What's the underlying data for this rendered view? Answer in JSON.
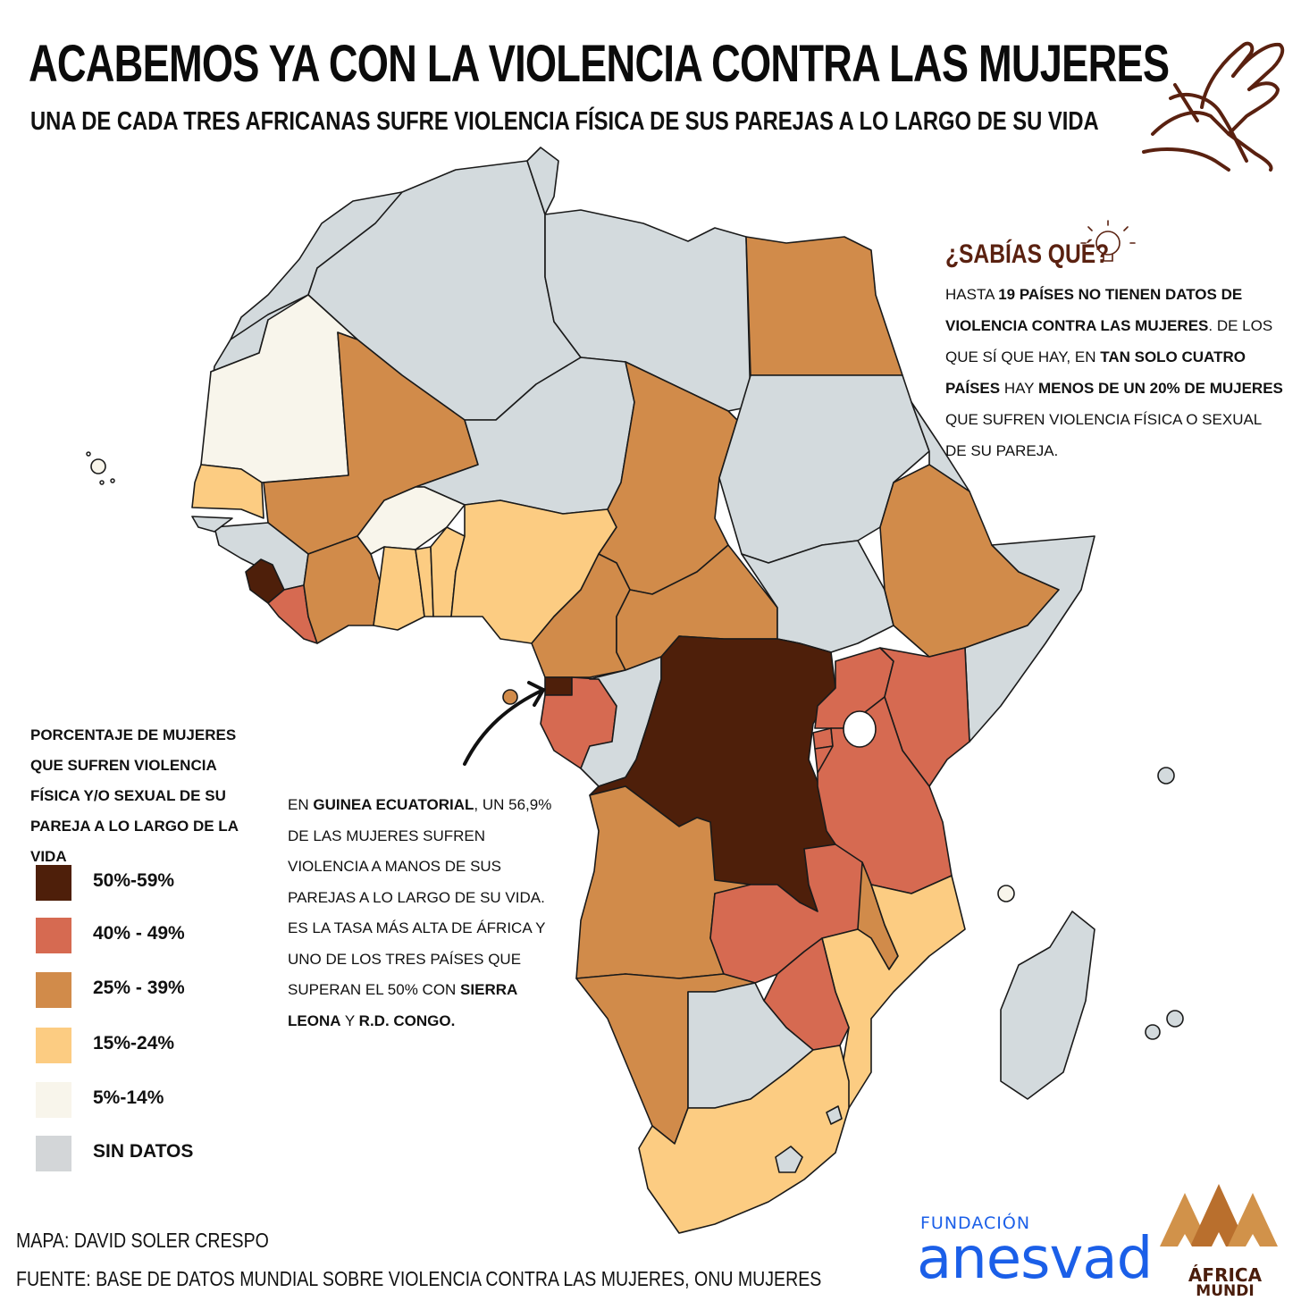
{
  "header": {
    "title": "ACABEMOS YA CON LA VIOLENCIA CONTRA LAS MUJERES",
    "subtitle": "UNA DE CADA TRES AFRICANAS SUFRE VIOLENCIA FÍSICA DE SUS PAREJAS A LO LARGO DE SU VIDA"
  },
  "fact_box": {
    "title": "¿SABÍAS QUÉ?",
    "segments": [
      {
        "text": "HASTA ",
        "bold": false
      },
      {
        "text": "19 PAÍSES NO TIENEN DATOS DE VIOLENCIA CONTRA LAS MUJERES",
        "bold": true
      },
      {
        "text": ".  DE LOS QUE SÍ QUE HAY, EN ",
        "bold": false
      },
      {
        "text": "TAN SOLO CUATRO PAÍSES",
        "bold": true
      },
      {
        "text": " HAY ",
        "bold": false
      },
      {
        "text": "MENOS DE UN 20% DE MUJERES",
        "bold": true
      },
      {
        "text": " QUE SUFREN VIOLENCIA FÍSICA O SEXUAL DE SU PAREJA.",
        "bold": false
      }
    ]
  },
  "note": {
    "segments": [
      {
        "text": "EN ",
        "bold": false
      },
      {
        "text": "GUINEA ECUATORIAL",
        "bold": true
      },
      {
        "text": ", UN 56,9% DE LAS MUJERES SUFREN VIOLENCIA A MANOS DE SUS PAREJAS A LO LARGO DE SU VIDA. ES LA TASA MÁS ALTA DE ÁFRICA Y UNO DE LOS TRES PAÍSES QUE SUPERAN EL 50% CON ",
        "bold": false
      },
      {
        "text": "SIERRA LEONA",
        "bold": true
      },
      {
        "text": " Y ",
        "bold": false
      },
      {
        "text": "R.D. CONGO.",
        "bold": true
      }
    ]
  },
  "legend": {
    "title": "PORCENTAJE DE MUJERES QUE SUFREN VIOLENCIA FÍSICA Y/O SEXUAL DE SU PAREJA A LO LARGO DE LA VIDA",
    "items": [
      {
        "label": "50%-59%",
        "color": "#4e1f0a"
      },
      {
        "label": "40% - 49%",
        "color": "#d66a51"
      },
      {
        "label": "25% - 39%",
        "color": "#d18b4a"
      },
      {
        "label": "15%-24%",
        "color": "#fccc82"
      },
      {
        "label": "5%-14%",
        "color": "#f8f5eb"
      },
      {
        "label": "SIN DATOS",
        "color": "#d3d6d8"
      }
    ]
  },
  "credits": {
    "map": "MAPA: DAVID SOLER CRESPO",
    "source": "FUENTE: BASE DE DATOS MUNDIAL SOBRE VIOLENCIA CONTRA LAS MUJERES, ONU MUJERES"
  },
  "logos": {
    "anesvad_top": "FUNDACIÓN",
    "anesvad_main": "anesvad",
    "africa_mundi_1": "ÁFRICA",
    "africa_mundi_2": "MUNDI"
  },
  "colors": {
    "bin_50_59": "#4e1f0a",
    "bin_40_49": "#d66a51",
    "bin_25_39": "#d18b4a",
    "bin_15_24": "#fccc82",
    "bin_5_14": "#f8f5eb",
    "no_data": "#d3dadd",
    "accent_brown": "#5a2110",
    "anesvad_blue": "#1b5fe8"
  },
  "icons": {
    "hands": "hands-holding-icon",
    "lightbulb": "lightbulb-icon",
    "arrow": "curved-arrow-icon"
  }
}
